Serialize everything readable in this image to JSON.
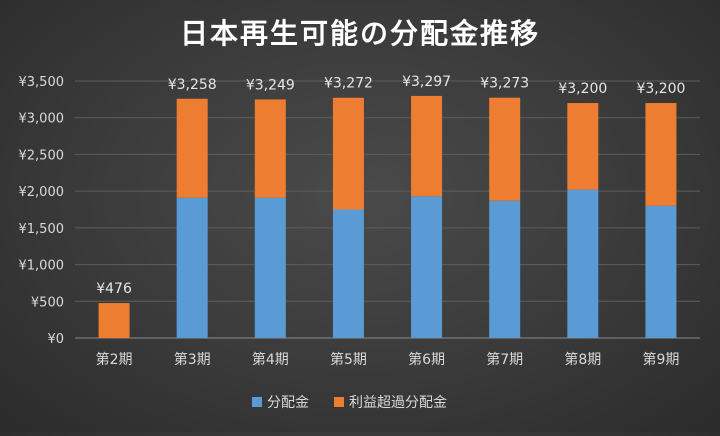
{
  "chart_data": {
    "type": "bar",
    "stacked": true,
    "title": "日本再生可能の分配金推移",
    "categories": [
      "第2期",
      "第3期",
      "第4期",
      "第5期",
      "第6期",
      "第7期",
      "第8期",
      "第9期"
    ],
    "series": [
      {
        "name": "分配金",
        "color": "#5b9bd5",
        "values": [
          0,
          1910,
          1910,
          1750,
          1930,
          1870,
          2020,
          1800
        ]
      },
      {
        "name": "利益超過分配金",
        "color": "#ed7d31",
        "values": [
          476,
          1348,
          1339,
          1522,
          1367,
          1403,
          1180,
          1400
        ]
      }
    ],
    "totals": [
      476,
      3258,
      3249,
      3272,
      3297,
      3273,
      3200,
      3200
    ],
    "data_labels": [
      "¥476",
      "¥3,258",
      "¥3,249",
      "¥3,272",
      "¥3,297",
      "¥3,273",
      "¥3,200",
      "¥3,200"
    ],
    "y_ticks": [
      0,
      500,
      1000,
      1500,
      2000,
      2500,
      3000,
      3500
    ],
    "y_tick_labels": [
      "¥0",
      "¥500",
      "¥1,000",
      "¥1,500",
      "¥2,000",
      "¥2,500",
      "¥3,000",
      "¥3,500"
    ],
    "ylim": [
      0,
      3500
    ],
    "grid": true,
    "legend_position": "bottom"
  }
}
